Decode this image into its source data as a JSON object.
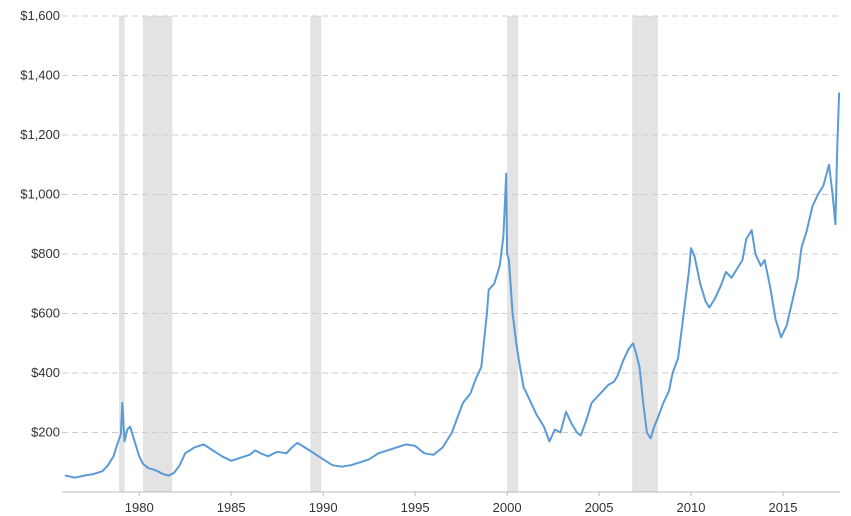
{
  "colors": {
    "series": "#5b9bd5",
    "recession": "#e3e3e3",
    "grid": "#cccccc",
    "text": "#333333"
  },
  "chart_data": {
    "type": "line",
    "title": "",
    "xlabel": "",
    "ylabel": "",
    "xlim": [
      1975.8,
      2018.1
    ],
    "ylim": [
      0,
      1600
    ],
    "grid": true,
    "legend": "none",
    "y_ticks": [
      {
        "value": 200,
        "label": "$200"
      },
      {
        "value": 400,
        "label": "$400"
      },
      {
        "value": 600,
        "label": "$600"
      },
      {
        "value": 800,
        "label": "$800"
      },
      {
        "value": 1000,
        "label": "$1,000"
      },
      {
        "value": 1200,
        "label": "$1,200"
      },
      {
        "value": 1400,
        "label": "$1,400"
      },
      {
        "value": 1600,
        "label": "$1,600"
      }
    ],
    "x_ticks": [
      {
        "value": 1980,
        "label": "1980"
      },
      {
        "value": 1985,
        "label": "1985"
      },
      {
        "value": 1990,
        "label": "1990"
      },
      {
        "value": 1995,
        "label": "1995"
      },
      {
        "value": 2000,
        "label": "2000"
      },
      {
        "value": 2005,
        "label": "2005"
      },
      {
        "value": 2010,
        "label": "2010"
      },
      {
        "value": 2015,
        "label": "2015"
      }
    ],
    "recessions": [
      [
        1978.9,
        1979.2
      ],
      [
        1980.2,
        1981.8
      ],
      [
        1989.3,
        1989.9
      ],
      [
        2000.0,
        2000.6
      ],
      [
        2006.8,
        2008.2
      ]
    ],
    "series": [
      {
        "x": [
          1976.0,
          1976.5,
          1977.0,
          1977.5,
          1978.0,
          1978.3,
          1978.6,
          1978.8,
          1979.0,
          1979.08,
          1979.2,
          1979.35,
          1979.5,
          1979.7,
          1980.0,
          1980.2,
          1980.5,
          1980.8,
          1981.0,
          1981.3,
          1981.6,
          1981.9,
          1982.2,
          1982.5,
          1983.0,
          1983.5,
          1984.0,
          1984.5,
          1985.0,
          1985.5,
          1986.0,
          1986.3,
          1986.6,
          1987.0,
          1987.5,
          1988.0,
          1988.3,
          1988.6,
          1989.0,
          1989.5,
          1990.0,
          1990.5,
          1991.0,
          1991.5,
          1992.0,
          1992.5,
          1993.0,
          1993.5,
          1994.0,
          1994.5,
          1995.0,
          1995.5,
          1996.0,
          1996.5,
          1997.0,
          1997.3,
          1997.6,
          1998.0,
          1998.3,
          1998.6,
          1998.9,
          1999.0,
          1999.3,
          1999.6,
          1999.8,
          1999.9,
          1999.95,
          2000.0,
          2000.1,
          2000.3,
          2000.5,
          2000.7,
          2000.9,
          2001.0,
          2001.3,
          2001.6,
          2002.0,
          2002.3,
          2002.6,
          2002.9,
          2003.2,
          2003.5,
          2003.8,
          2004.0,
          2004.3,
          2004.6,
          2004.9,
          2005.2,
          2005.5,
          2005.8,
          2006.0,
          2006.3,
          2006.6,
          2006.85,
          2007.0,
          2007.2,
          2007.4,
          2007.6,
          2007.8,
          2008.0,
          2008.2,
          2008.5,
          2008.8,
          2009.0,
          2009.3,
          2009.6,
          2009.9,
          2010.0,
          2010.2,
          2010.5,
          2010.8,
          2011.0,
          2011.3,
          2011.6,
          2011.9,
          2012.2,
          2012.5,
          2012.8,
          2013.0,
          2013.3,
          2013.5,
          2013.8,
          2014.0,
          2014.3,
          2014.6,
          2014.9,
          2015.2,
          2015.5,
          2015.8,
          2016.0,
          2016.3,
          2016.6,
          2016.9,
          2017.2,
          2017.5,
          2017.7,
          2017.85,
          2017.95,
          2018.05
        ],
        "values": [
          55,
          48,
          55,
          60,
          70,
          90,
          120,
          160,
          195,
          300,
          170,
          210,
          220,
          180,
          120,
          95,
          80,
          75,
          70,
          60,
          55,
          65,
          90,
          130,
          150,
          160,
          140,
          120,
          105,
          115,
          125,
          140,
          130,
          120,
          135,
          130,
          150,
          165,
          150,
          130,
          110,
          90,
          85,
          90,
          100,
          110,
          130,
          140,
          150,
          160,
          155,
          130,
          125,
          150,
          200,
          250,
          300,
          330,
          380,
          420,
          600,
          680,
          700,
          760,
          860,
          1000,
          1070,
          800,
          780,
          600,
          500,
          420,
          350,
          340,
          300,
          260,
          220,
          170,
          210,
          200,
          270,
          230,
          200,
          190,
          240,
          300,
          320,
          340,
          360,
          370,
          390,
          440,
          480,
          500,
          470,
          420,
          300,
          200,
          180,
          220,
          250,
          300,
          340,
          400,
          450,
          600,
          750,
          820,
          790,
          700,
          640,
          620,
          650,
          690,
          740,
          720,
          750,
          780,
          850,
          880,
          800,
          760,
          780,
          690,
          580,
          520,
          560,
          640,
          720,
          820,
          880,
          960,
          1000,
          1030,
          1100,
          1000,
          900,
          1150,
          1340
        ]
      }
    ]
  }
}
